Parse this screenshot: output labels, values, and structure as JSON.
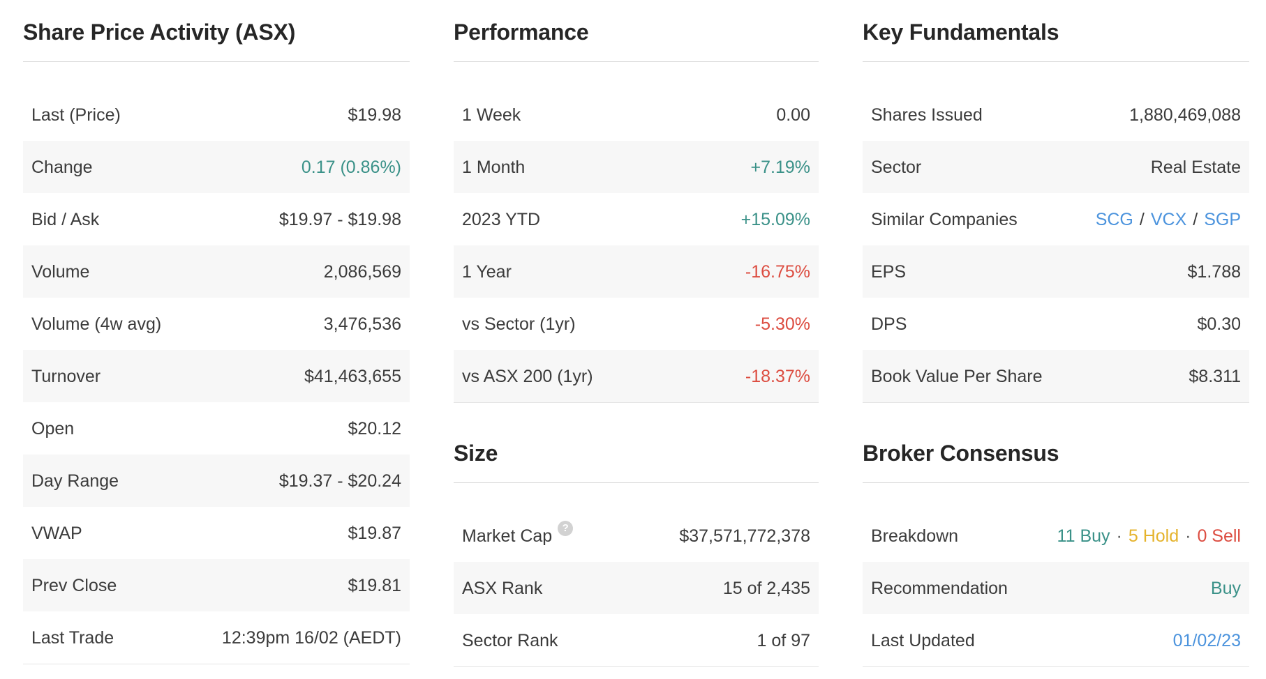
{
  "colors": {
    "text": "#3b3b3b",
    "heading": "#262626",
    "positive": "#3a9188",
    "negative": "#dc4c40",
    "hold": "#e5b32c",
    "link": "#4b93dd",
    "separator": "#555555",
    "row_alt_bg": "#f7f7f7",
    "divider": "#d6d6d6"
  },
  "columns": [
    {
      "sections": [
        {
          "title": "Share Price Activity (ASX)",
          "rows": [
            {
              "label": "Last (Price)",
              "value": "$19.98",
              "tone": "text"
            },
            {
              "label": "Change",
              "value": "0.17 (0.86%)",
              "tone": "positive"
            },
            {
              "label": "Bid / Ask",
              "value": "$19.97 - $19.98",
              "tone": "text"
            },
            {
              "label": "Volume",
              "value": "2,086,569",
              "tone": "text"
            },
            {
              "label": "Volume (4w avg)",
              "value": "3,476,536",
              "tone": "text"
            },
            {
              "label": "Turnover",
              "value": "$41,463,655",
              "tone": "text"
            },
            {
              "label": "Open",
              "value": "$20.12",
              "tone": "text"
            },
            {
              "label": "Day Range",
              "value": "$19.37 - $20.24",
              "tone": "text"
            },
            {
              "label": "VWAP",
              "value": "$19.87",
              "tone": "text"
            },
            {
              "label": "Prev Close",
              "value": "$19.81",
              "tone": "text"
            },
            {
              "label": "Last Trade",
              "value": "12:39pm 16/02 (AEDT)",
              "tone": "text"
            }
          ]
        }
      ]
    },
    {
      "sections": [
        {
          "title": "Performance",
          "rows": [
            {
              "label": "1 Week",
              "value": "0.00",
              "tone": "text"
            },
            {
              "label": "1 Month",
              "value": "+7.19%",
              "tone": "positive"
            },
            {
              "label": "2023 YTD",
              "value": "+15.09%",
              "tone": "positive"
            },
            {
              "label": "1 Year",
              "value": "-16.75%",
              "tone": "negative"
            },
            {
              "label": "vs Sector (1yr)",
              "value": "-5.30%",
              "tone": "negative"
            },
            {
              "label": "vs ASX 200 (1yr)",
              "value": "-18.37%",
              "tone": "negative"
            }
          ]
        },
        {
          "title": "Size",
          "rows": [
            {
              "label": "Market Cap",
              "help_icon": "?",
              "value": "$37,571,772,378",
              "tone": "text"
            },
            {
              "label": "ASX Rank",
              "value": "15 of 2,435",
              "tone": "text"
            },
            {
              "label": "Sector Rank",
              "value": "1 of 97",
              "tone": "text"
            }
          ]
        }
      ]
    },
    {
      "sections": [
        {
          "title": "Key Fundamentals",
          "rows": [
            {
              "label": "Shares Issued",
              "value": "1,880,469,088",
              "tone": "text"
            },
            {
              "label": "Sector",
              "value": "Real Estate",
              "tone": "text"
            },
            {
              "label": "Similar Companies",
              "parts": [
                {
                  "text": "SCG",
                  "tone": "link"
                },
                {
                  "text": "/",
                  "tone": "text"
                },
                {
                  "text": "VCX",
                  "tone": "link"
                },
                {
                  "text": "/",
                  "tone": "text"
                },
                {
                  "text": "SGP",
                  "tone": "link"
                }
              ]
            },
            {
              "label": "EPS",
              "value": "$1.788",
              "tone": "text"
            },
            {
              "label": "DPS",
              "value": "$0.30",
              "tone": "text"
            },
            {
              "label": "Book Value Per Share",
              "value": "$8.311",
              "tone": "text"
            }
          ]
        },
        {
          "title": "Broker Consensus",
          "rows": [
            {
              "label": "Breakdown",
              "parts": [
                {
                  "text": "11 Buy",
                  "tone": "positive"
                },
                {
                  "text": "·",
                  "tone": "separator"
                },
                {
                  "text": "5 Hold",
                  "tone": "hold"
                },
                {
                  "text": "·",
                  "tone": "separator"
                },
                {
                  "text": "0 Sell",
                  "tone": "negative"
                }
              ]
            },
            {
              "label": "Recommendation",
              "value": "Buy",
              "tone": "positive"
            },
            {
              "label": "Last Updated",
              "value": "01/02/23",
              "tone": "link"
            }
          ]
        }
      ]
    }
  ]
}
